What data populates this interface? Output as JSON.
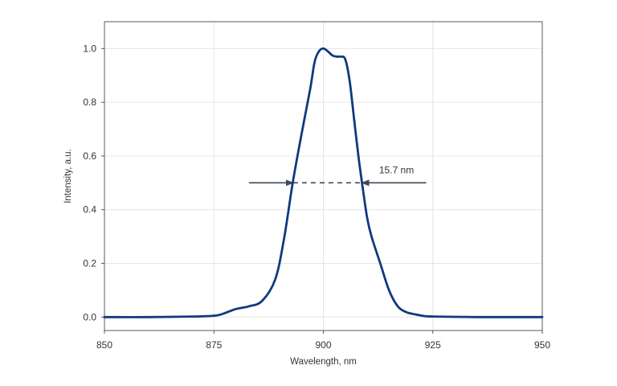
{
  "chart_data": {
    "type": "line",
    "title": "",
    "xlabel": "Wavelength, nm",
    "ylabel": "Intensity, a.u.",
    "xlim": [
      850,
      950
    ],
    "ylim": [
      -0.05,
      1.1
    ],
    "x_ticks": [
      850,
      875,
      900,
      925,
      950
    ],
    "x_tick_labels": [
      "850",
      "875",
      "900",
      "925",
      "950"
    ],
    "y_ticks": [
      0.0,
      0.2,
      0.4,
      0.6,
      0.8,
      1.0
    ],
    "y_tick_labels": [
      "0.0",
      "0.2",
      "0.4",
      "0.6",
      "0.8",
      "1.0"
    ],
    "grid": true,
    "series": [
      {
        "color": "#0f3a7d",
        "x": [
          850,
          860,
          870,
          875,
          877,
          880,
          883,
          886,
          889,
          891,
          893,
          895,
          897,
          898,
          899,
          900,
          901,
          902,
          903,
          904,
          905,
          906,
          907,
          908,
          909,
          910,
          911,
          913,
          915,
          917,
          919,
          921,
          923,
          925,
          930,
          935,
          940,
          945,
          950
        ],
        "y": [
          0.0,
          0.0,
          0.002,
          0.005,
          0.012,
          0.03,
          0.04,
          0.06,
          0.14,
          0.29,
          0.5,
          0.68,
          0.85,
          0.95,
          0.99,
          1.0,
          0.99,
          0.975,
          0.97,
          0.97,
          0.96,
          0.88,
          0.74,
          0.6,
          0.48,
          0.37,
          0.3,
          0.2,
          0.1,
          0.04,
          0.018,
          0.01,
          0.004,
          0.002,
          0.001,
          0.0,
          0.0,
          0.0,
          0.0
        ]
      }
    ],
    "annotation": {
      "text": "15.7 nm",
      "level": 0.5,
      "x_left": 893.1,
      "x_right": 908.8,
      "arrow_left_start": 883,
      "arrow_right_start": 923.5
    }
  }
}
